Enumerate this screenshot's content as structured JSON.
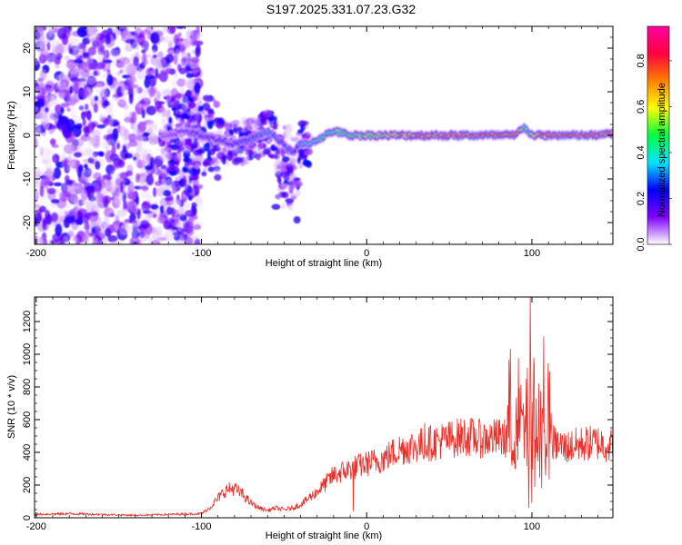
{
  "title": "S197.2025.331.07.23.G32",
  "chart_data": [
    {
      "type": "heatmap",
      "name": "spectrogram",
      "xlabel": "Height of straight line (km)",
      "ylabel": "Frequency (Hz)",
      "xlim": [
        -201,
        149
      ],
      "ylim": [
        -25,
        25
      ],
      "xticks": [
        -200,
        -100,
        0,
        100
      ],
      "yticks": [
        -20,
        -10,
        0,
        10,
        20
      ],
      "colorbar": {
        "label": "Normalized spectral amplitude",
        "range": [
          0,
          0.95
        ],
        "ticks": [
          "0.0",
          "0.2",
          "0.4",
          "0.6",
          "0.8"
        ],
        "colors": [
          "#ffffff",
          "#7f00ff",
          "#0000ff",
          "#00e5ff",
          "#00ff40",
          "#ffff00",
          "#ff8000",
          "#ff0040",
          "#ff00a0"
        ]
      },
      "ridge": {
        "x": [
          -120,
          -110,
          -100,
          -90,
          -80,
          -70,
          -60,
          -50,
          -45,
          -40,
          -35,
          -30,
          -20,
          -10,
          0,
          10,
          20,
          30,
          40,
          50,
          60,
          70,
          80,
          90,
          95,
          100,
          110,
          120,
          130,
          140,
          149
        ],
        "freq": [
          0,
          1,
          0,
          -1,
          -2,
          -1,
          1,
          -2,
          -4,
          -2,
          -2,
          -1,
          1,
          0,
          0,
          0,
          0,
          0,
          0,
          0,
          0,
          0,
          0,
          0,
          2,
          0,
          0,
          0,
          0,
          0,
          0.5
        ],
        "amplitude": [
          0.15,
          0.2,
          0.25,
          0.25,
          0.25,
          0.3,
          0.35,
          0.3,
          0.3,
          0.35,
          0.4,
          0.45,
          0.5,
          0.55,
          0.6,
          0.65,
          0.7,
          0.75,
          0.8,
          0.85,
          0.9,
          0.85,
          0.9,
          0.8,
          0.5,
          0.6,
          0.85,
          0.9,
          0.9,
          0.85,
          0.8
        ]
      }
    },
    {
      "type": "line",
      "name": "snr",
      "xlabel": "Height of straight line (km)",
      "ylabel": "SNR (10 * v/v)",
      "xlim": [
        -201,
        149
      ],
      "ylim": [
        0,
        1350
      ],
      "xticks": [
        -200,
        -100,
        0,
        100
      ],
      "yticks": [
        0,
        200,
        400,
        600,
        800,
        1000,
        1200
      ],
      "color": "#e8302a",
      "envelope": {
        "x": [
          -201,
          -180,
          -160,
          -140,
          -120,
          -100,
          -95,
          -90,
          -85,
          -80,
          -75,
          -70,
          -65,
          -60,
          -55,
          -50,
          -45,
          -40,
          -30,
          -20,
          -10,
          0,
          10,
          20,
          30,
          40,
          50,
          60,
          70,
          80,
          90,
          95,
          100,
          105,
          110,
          120,
          130,
          140,
          149
        ],
        "y": [
          20,
          25,
          20,
          15,
          20,
          25,
          60,
          120,
          170,
          180,
          140,
          90,
          60,
          45,
          60,
          50,
          60,
          80,
          160,
          260,
          300,
          330,
          360,
          420,
          440,
          460,
          480,
          500,
          480,
          490,
          480,
          500,
          450,
          420,
          470,
          430,
          450,
          460,
          440
        ]
      },
      "noise_frac": 0.25,
      "spikes": [
        {
          "x": -8,
          "y": 40
        },
        {
          "x": 35,
          "y": 580
        },
        {
          "x": 99,
          "y": 1350
        },
        {
          "x": 100,
          "y": 90
        },
        {
          "x": 101,
          "y": 980
        },
        {
          "x": 104,
          "y": 820
        },
        {
          "x": 107,
          "y": 1110
        },
        {
          "x": 98,
          "y": 60
        }
      ]
    }
  ]
}
